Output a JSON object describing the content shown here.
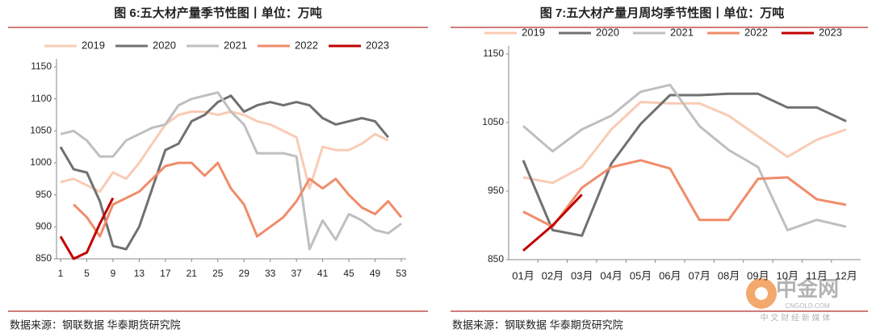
{
  "chart_data": [
    {
      "type": "line",
      "title": "图 6:五大材产量季节性图丨单位：万吨",
      "source": "数据来源：钢联数据 华泰期货研究院",
      "x": [
        1,
        3,
        5,
        7,
        9,
        11,
        13,
        15,
        17,
        19,
        21,
        23,
        25,
        27,
        29,
        31,
        33,
        35,
        37,
        39,
        41,
        43,
        45,
        47,
        49,
        51,
        53
      ],
      "xlim": [
        1,
        53
      ],
      "xticks": [
        1,
        5,
        9,
        13,
        17,
        21,
        25,
        29,
        33,
        37,
        41,
        45,
        49,
        53
      ],
      "ylim": [
        850,
        1150
      ],
      "yticks": [
        850,
        900,
        950,
        1000,
        1050,
        1100,
        1150
      ],
      "grid": false,
      "legend": "top",
      "series": [
        {
          "name": "2019",
          "color": "#f9cbb5",
          "values": [
            970,
            975,
            965,
            955,
            985,
            975,
            1000,
            1030,
            1060,
            1075,
            1080,
            1080,
            1075,
            1080,
            1075,
            1065,
            1060,
            1050,
            1040,
            960,
            1025,
            1020,
            1020,
            1030,
            1045,
            1035,
            null
          ]
        },
        {
          "name": "2020",
          "color": "#707070",
          "values": [
            1025,
            990,
            985,
            940,
            870,
            865,
            900,
            960,
            1020,
            1030,
            1065,
            1075,
            1095,
            1105,
            1080,
            1090,
            1095,
            1090,
            1095,
            1090,
            1070,
            1060,
            1065,
            1070,
            1065,
            1040,
            null
          ]
        },
        {
          "name": "2021",
          "color": "#bfbfbf",
          "values": [
            1045,
            1050,
            1035,
            1010,
            1010,
            1035,
            1045,
            1055,
            1060,
            1090,
            1100,
            1105,
            1110,
            1080,
            1060,
            1015,
            1015,
            1015,
            1010,
            865,
            910,
            880,
            920,
            910,
            895,
            890,
            905
          ]
        },
        {
          "name": "2022",
          "color": "#f08c6a",
          "values": [
            null,
            935,
            915,
            885,
            935,
            945,
            955,
            975,
            995,
            1000,
            1000,
            980,
            1000,
            960,
            935,
            885,
            900,
            915,
            940,
            975,
            960,
            975,
            950,
            930,
            920,
            940,
            915
          ]
        },
        {
          "name": "2023",
          "color": "#c00000",
          "values": [
            885,
            850,
            860,
            905,
            945,
            null,
            null,
            null,
            null,
            null,
            null,
            null,
            null,
            null,
            null,
            null,
            null,
            null,
            null,
            null,
            null,
            null,
            null,
            null,
            null,
            null,
            null
          ]
        }
      ]
    },
    {
      "type": "line",
      "title": "图 7:五大材产量月周均季节性图丨单位：万吨",
      "source": "数据来源：钢联数据 华泰期货研究院",
      "categories": [
        "01月",
        "02月",
        "03月",
        "04月",
        "05月",
        "06月",
        "07月",
        "08月",
        "09月",
        "10月",
        "11月",
        "12月"
      ],
      "ylim": [
        850,
        1150
      ],
      "yticks": [
        850,
        950,
        1050,
        1150
      ],
      "grid": false,
      "legend": "top",
      "series": [
        {
          "name": "2019",
          "color": "#f9cbb5",
          "values": [
            970,
            962,
            985,
            1040,
            1080,
            1078,
            1078,
            1060,
            1030,
            1000,
            1025,
            1040
          ]
        },
        {
          "name": "2020",
          "color": "#707070",
          "values": [
            995,
            893,
            885,
            990,
            1048,
            1090,
            1090,
            1092,
            1092,
            1072,
            1072,
            1052
          ]
        },
        {
          "name": "2021",
          "color": "#bfbfbf",
          "values": [
            1045,
            1008,
            1040,
            1060,
            1095,
            1105,
            1045,
            1010,
            985,
            893,
            908,
            898
          ]
        },
        {
          "name": "2022",
          "color": "#f08c6a",
          "values": [
            920,
            898,
            955,
            985,
            995,
            983,
            908,
            908,
            968,
            970,
            938,
            930
          ]
        },
        {
          "name": "2023",
          "color": "#c00000",
          "values": [
            863,
            900,
            945,
            null,
            null,
            null,
            null,
            null,
            null,
            null,
            null,
            null
          ]
        }
      ]
    }
  ],
  "watermark": {
    "name": "中金网",
    "url": "CNGOLD.COM",
    "tagline": "中 文 财 经 新 媒 体"
  }
}
